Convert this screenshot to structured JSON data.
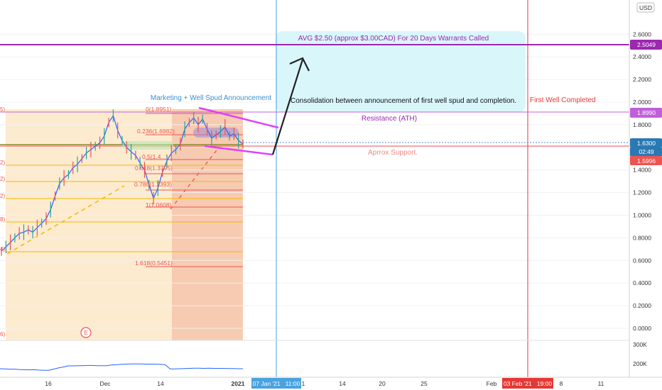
{
  "currency": "USD",
  "colors": {
    "accent_purple": "#9c27b0",
    "magenta": "#e040fb",
    "resistance_line": "#c060d8",
    "blue_vline": "#4aa3df",
    "red_vline": "#e53935",
    "fib_orange_fill": "#fde8c8",
    "fib_salmon_fill": "#f6c6ad",
    "callout_fill": "#d9f6fb",
    "price_line": "#2962ff",
    "fib_gold": "#f5b700",
    "fib_red": "#ef5350"
  },
  "annotations": {
    "callout": "AVG $2.50 (approx $3.00CAD) For 20 Days Warrants Called",
    "marketing": "Marketing + Well Spud Announcement",
    "consolidation": "Consolidation between announcement of first well spud and completion.",
    "first_well": "First Well Completed",
    "resistance": "Resistance (ATH)",
    "support": "Aprrox Support.",
    "earnings": "E"
  },
  "price_labels": {
    "purple_level": "2.5049",
    "resistance": "1.8990",
    "last": "1.6300",
    "countdown": "02:49",
    "support": "1.5996"
  },
  "time_labels": {
    "blue": "07 Jan '21   11:00",
    "red": "03 Feb '21   19:00"
  },
  "volume_labels": [
    "300K",
    "200K"
  ],
  "fib_labels": [
    "0(1.8951)",
    "0.236(1.6982)",
    "0.5(1.4...)",
    "0.618(1.3795)",
    "0.786(1.2393)",
    "1(1.0608)",
    "1.618(0.5451)"
  ],
  "chart_data": {
    "type": "line",
    "ylabel": "USD",
    "ylim": [
      -0.1,
      2.75
    ],
    "y_ticks": [
      "2.6000",
      "2.4000",
      "2.2000",
      "2.0000",
      "1.8000",
      "1.6000",
      "1.4000",
      "1.2000",
      "1.0000",
      "0.8000",
      "0.6000",
      "0.4000",
      "0.2000",
      "0.0000"
    ],
    "x_ticks": [
      "16",
      "Dec",
      "14",
      "2021",
      "1",
      "14",
      "20",
      "25",
      "Feb",
      "8",
      "11"
    ],
    "series": [
      {
        "values": [
          0.68,
          0.72,
          0.76,
          0.8,
          0.84,
          0.85,
          0.87,
          0.85,
          0.89,
          0.93,
          0.97,
          1.05,
          1.17,
          1.28,
          1.33,
          1.36,
          1.42,
          1.45,
          1.5,
          1.55,
          1.58,
          1.61,
          1.64,
          1.7,
          1.82,
          1.88,
          1.75,
          1.66,
          1.6,
          1.56,
          1.53,
          1.46,
          1.4,
          1.27,
          1.15,
          1.24,
          1.38,
          1.48,
          1.55,
          1.58,
          1.63,
          1.76,
          1.82,
          1.86,
          1.8,
          1.85,
          1.76,
          1.68,
          1.71,
          1.74,
          1.78,
          1.7,
          1.72,
          1.66,
          1.63
        ]
      }
    ],
    "levels": {
      "purple": 2.5049,
      "resistance": 1.899,
      "last": 1.63,
      "support": 1.5996
    },
    "volume_series": [
      174,
      173,
      172,
      172,
      170,
      169,
      168,
      169,
      167,
      166,
      166,
      172,
      178,
      183,
      189,
      189,
      190,
      190,
      191,
      191,
      190,
      190,
      190,
      194,
      195,
      197,
      198,
      199,
      199,
      199,
      198,
      198,
      198,
      197,
      195,
      173,
      173,
      174,
      175,
      176,
      177,
      177,
      176,
      177,
      176,
      176,
      176,
      175,
      175,
      174,
      174
    ]
  }
}
